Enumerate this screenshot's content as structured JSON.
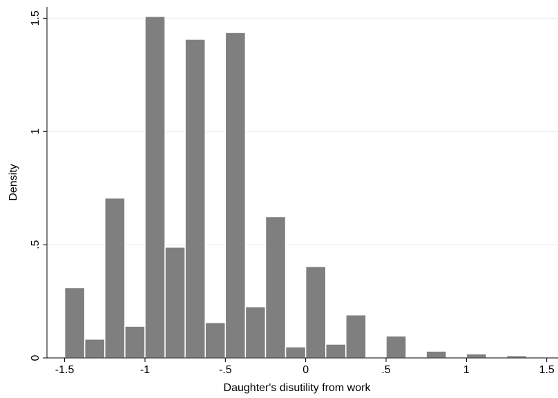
{
  "chart_data": {
    "type": "histogram",
    "xlabel": "Daughter's disutility from work",
    "ylabel": "Density",
    "bins": [
      -1.5,
      -1.375,
      -1.25,
      -1.125,
      -1,
      -0.875,
      -0.75,
      -0.625,
      -0.5,
      -0.375,
      -0.25,
      -0.125,
      0,
      0.125,
      0.25,
      0.375,
      0.5,
      0.625,
      0.75,
      0.875,
      1,
      1.125,
      1.25,
      1.375
    ],
    "values": [
      0.31,
      0.083,
      0.706,
      0.14,
      1.508,
      0.489,
      1.407,
      0.156,
      1.437,
      0.226,
      0.624,
      0.049,
      0.404,
      0.061,
      0.19,
      0,
      0.097,
      0,
      0.03,
      0,
      0.018,
      0,
      0.01
    ],
    "color": "#7f7f7f",
    "xlim": [
      -1.61,
      1.57
    ],
    "ylim": [
      0,
      1.55
    ],
    "xticks": [
      -1.5,
      -1,
      {
        "value": -0.5,
        "label": "-.5"
      },
      0,
      {
        "value": 0.5,
        "label": ".5"
      },
      1,
      1.5
    ],
    "yticks": [
      0,
      {
        "value": 0.5,
        "label": ".5"
      },
      1,
      1.5
    ],
    "grid": true
  }
}
